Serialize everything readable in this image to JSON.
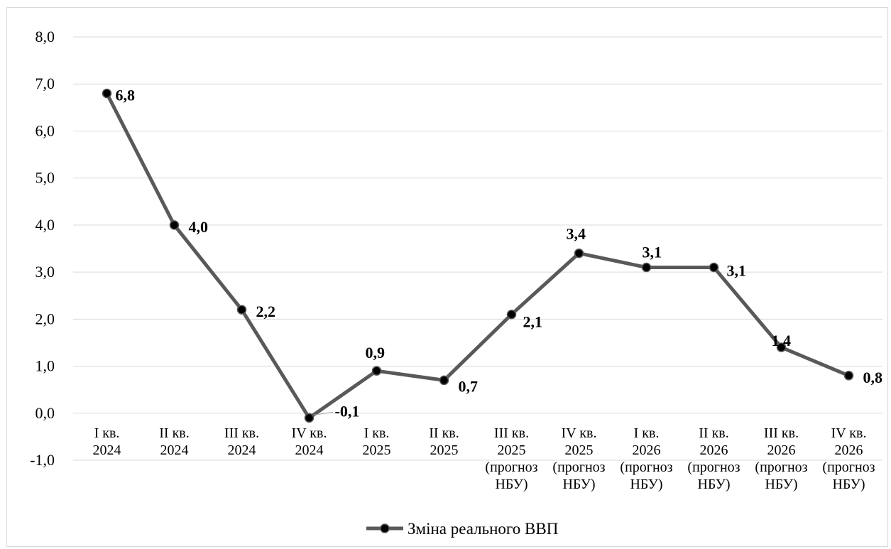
{
  "chart_data": {
    "type": "line",
    "title": "",
    "xlabel": "",
    "ylabel": "",
    "ylim": [
      -1.0,
      8.0
    ],
    "yticks": [
      "-1,0",
      "0,0",
      "1,0",
      "2,0",
      "3,0",
      "4,0",
      "5,0",
      "6,0",
      "7,0",
      "8,0"
    ],
    "grid": true,
    "legend": {
      "position": "bottom"
    },
    "categories": [
      [
        "I кв.",
        "2024"
      ],
      [
        "II кв.",
        "2024"
      ],
      [
        "III кв.",
        "2024"
      ],
      [
        "IV кв.",
        "2024"
      ],
      [
        "I кв.",
        "2025"
      ],
      [
        "II кв.",
        "2025"
      ],
      [
        "III кв.",
        "2025",
        "(прогноз",
        "НБУ)"
      ],
      [
        "IV кв.",
        "2025",
        "(прогноз",
        "НБУ)"
      ],
      [
        "I кв.",
        "2026",
        "(прогноз",
        "НБУ)"
      ],
      [
        "II кв.",
        "2026",
        "(прогноз",
        "НБУ)"
      ],
      [
        "III кв.",
        "2026",
        "(прогноз",
        "НБУ)"
      ],
      [
        "IV кв.",
        "2026",
        "(прогноз",
        "НБУ)"
      ]
    ],
    "series": [
      {
        "name": "Зміна реального ВВП",
        "color": "#595959",
        "values": [
          6.8,
          4.0,
          2.2,
          -0.1,
          0.9,
          0.7,
          2.1,
          3.4,
          3.1,
          3.1,
          1.4,
          0.8
        ],
        "labels": [
          "6,8",
          "4,0",
          "2,2",
          "-0,1",
          "0,9",
          "0,7",
          "2,1",
          "3,4",
          "3,1",
          "3,1",
          "1,4",
          "0,8"
        ]
      }
    ]
  }
}
